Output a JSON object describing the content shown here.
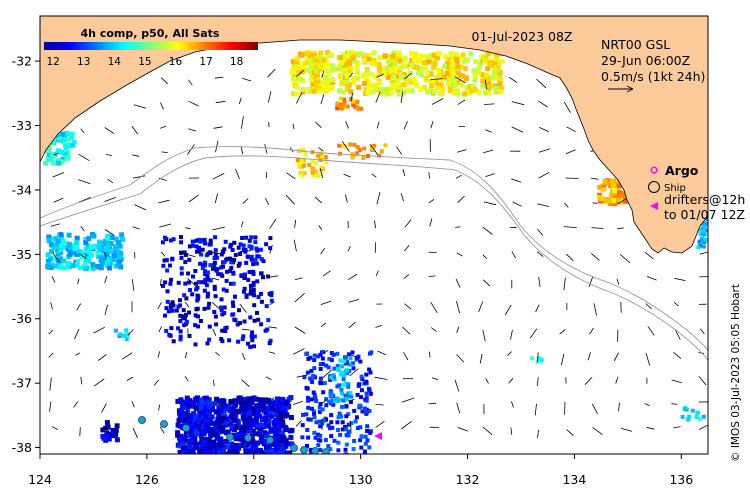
{
  "map": {
    "date_label": "01-Jul-2023 08Z",
    "credit": "© IMOS 03-Jul-2023 05:05 Hobart",
    "x_axis": {
      "min": 124,
      "max": 136.5,
      "ticks": [
        "124",
        "126",
        "128",
        "130",
        "132",
        "134",
        "136"
      ]
    },
    "y_axis": {
      "min": -38.1,
      "max": -31.3,
      "ticks": [
        "-32",
        "-33",
        "-34",
        "-35",
        "-36",
        "-37",
        "-38"
      ]
    },
    "colors": {
      "land": "#fdcb9a",
      "ocean": "#ffffff",
      "isobath": "#9a9a9a",
      "arrows": "#000000",
      "argo": "#ff00ff",
      "drifter": "#ff00ff",
      "ship": "#000000"
    }
  },
  "colorbar": {
    "title": "4h comp, p50, All Sats",
    "ticks": [
      "12",
      "13",
      "14",
      "15",
      "16",
      "17",
      "18"
    ],
    "range": [
      11.7,
      18.7
    ]
  },
  "currents": {
    "line1": "NRT00 GSL",
    "line2": "29-Jun 06:00Z",
    "scale_label": "0.5m/s (1kt 24h)"
  },
  "legend": {
    "argo": "Argo",
    "ship": "Ship",
    "drifters_line1": "drifters@12h",
    "drifters_line2": "to 01/07 12Z"
  }
}
